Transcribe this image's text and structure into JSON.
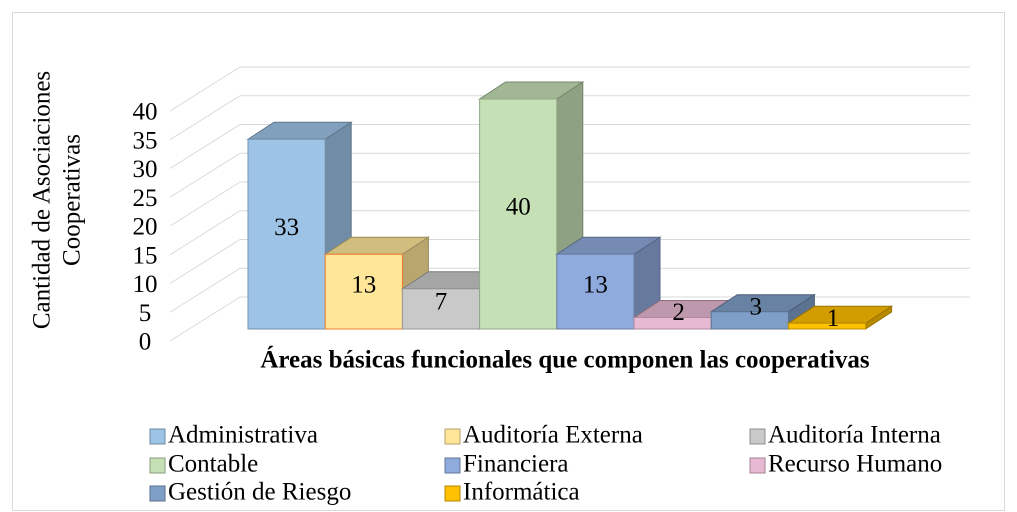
{
  "chart_data": {
    "type": "bar",
    "ylabel": [
      "Cantidad de Asociaciones",
      "Cooperativas"
    ],
    "xlabel": "Áreas básicas funcionales que componen las cooperativas",
    "ylim": [
      0,
      40
    ],
    "yticks": [
      0,
      5,
      10,
      15,
      20,
      25,
      30,
      35,
      40
    ],
    "grid": true,
    "legend": "bottom",
    "series": [
      {
        "name": "Administrativa",
        "color": "#9dc3e6",
        "values": [
          33
        ]
      },
      {
        "name": "Auditoría Externa",
        "color": "#ffe699",
        "values": [
          13
        ]
      },
      {
        "name": "Auditoría Interna",
        "color": "#c9c9c9",
        "values": [
          7
        ]
      },
      {
        "name": "Contable",
        "color": "#c5e0b4",
        "values": [
          40
        ]
      },
      {
        "name": "Financiera",
        "color": "#8faadc",
        "values": [
          13
        ]
      },
      {
        "name": "Recurso Humano",
        "color": "#e8b9d2",
        "values": [
          2
        ]
      },
      {
        "name": "Gestión de Riesgo",
        "color": "#7f9fc8",
        "values": [
          3
        ]
      },
      {
        "name": "Informática",
        "color": "#ffc000",
        "values": [
          1
        ]
      }
    ]
  }
}
